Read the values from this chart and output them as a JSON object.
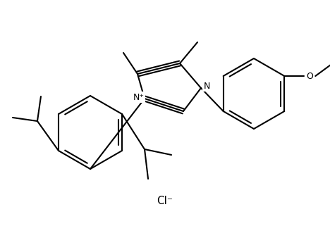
{
  "background_color": "#ffffff",
  "line_color": "#000000",
  "line_width": 1.5,
  "figure_width": 4.68,
  "figure_height": 3.21,
  "dpi": 100,
  "cl_label": "Cl⁻",
  "n_plus_label": "N⁺",
  "n_label": "N",
  "o_label": "O",
  "font_size_atoms": 9,
  "font_size_cl": 11
}
